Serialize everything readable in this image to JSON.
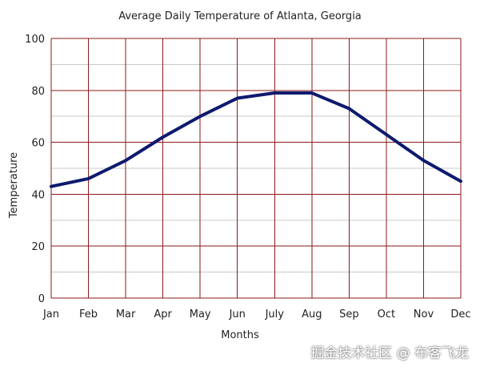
{
  "chart_data": {
    "type": "line",
    "title": "Average Daily Temperature of Atlanta, Georgia",
    "xlabel": "Months",
    "ylabel": "Temperature",
    "categories": [
      "Jan",
      "Feb",
      "Mar",
      "Apr",
      "May",
      "Jun",
      "July",
      "Aug",
      "Sep",
      "Oct",
      "Nov",
      "Dec"
    ],
    "series": [
      {
        "values": [
          43,
          46,
          53,
          62,
          70,
          77,
          79,
          79,
          73,
          63,
          53,
          45
        ]
      }
    ],
    "ylim": [
      0,
      100
    ],
    "yticks": [
      0,
      20,
      40,
      60,
      80,
      100
    ],
    "grid": true,
    "colors": {
      "line": "#0d1a6e",
      "major_grid": "#8b1a1a",
      "minor_grid": "#c8c8c8"
    }
  },
  "watermark": "掘金技术社区 @ 布客飞龙"
}
